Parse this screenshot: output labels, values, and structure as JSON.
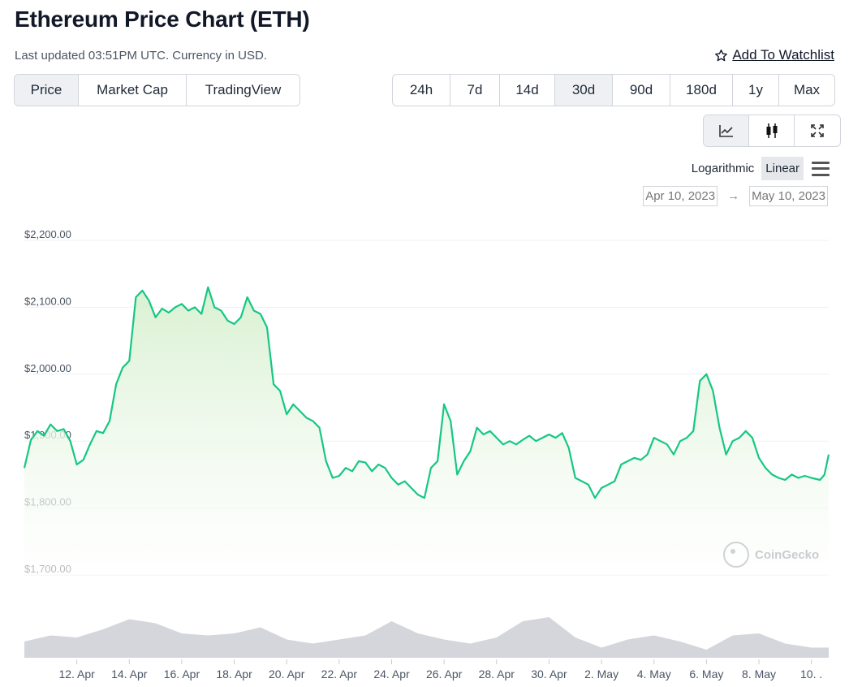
{
  "header": {
    "title": "Ethereum Price Chart (ETH)",
    "updated": "Last updated 03:51PM UTC. Currency in USD.",
    "watchlist_label": "Add To Watchlist",
    "watchlist_icon": "star-outline-icon"
  },
  "view_tabs": [
    "Price",
    "Market Cap",
    "TradingView"
  ],
  "view_active": "Price",
  "range_tabs": [
    "24h",
    "7d",
    "14d",
    "30d",
    "90d",
    "180d",
    "1y",
    "Max"
  ],
  "range_active": "30d",
  "chart_type_icons": [
    "line-chart-icon",
    "candlestick-icon",
    "fullscreen-icon"
  ],
  "chart_type_active": "line-chart-icon",
  "scale": {
    "logarithmic": "Logarithmic",
    "linear": "Linear",
    "active": "Linear",
    "menu_icon": "hamburger-menu-icon"
  },
  "date_range": {
    "from": "Apr 10, 2023",
    "arrow": "→",
    "to": "May 10, 2023"
  },
  "watermark": "CoinGecko",
  "colors": {
    "line": "#16c784",
    "area_top": "#dff3d8",
    "volume": "#d4d6dc",
    "grid": "#eef0f3"
  },
  "chart_data": {
    "type": "area",
    "title": "",
    "xlabel": "",
    "ylabel": "",
    "ylim": [
      1700,
      2200
    ],
    "yticks": [
      1700,
      1800,
      1900,
      2000,
      2100,
      2200
    ],
    "ytick_labels": [
      "$1,700.00",
      "$1,800.00",
      "$1,900.00",
      "$2,000.00",
      "$2,100.00",
      "$2,200.00"
    ],
    "xtick_labels": [
      "12. Apr",
      "14. Apr",
      "16. Apr",
      "18. Apr",
      "20. Apr",
      "22. Apr",
      "24. Apr",
      "26. Apr",
      "28. Apr",
      "30. Apr",
      "2. May",
      "4. May",
      "6. May",
      "8. May",
      "10. ."
    ],
    "xlim": [
      "2023-04-10",
      "2023-05-10 15:51"
    ],
    "price_series": [
      [
        "2023-04-10 00:00",
        1860
      ],
      [
        "2023-04-10 06:00",
        1902
      ],
      [
        "2023-04-10 12:00",
        1915
      ],
      [
        "2023-04-10 18:00",
        1908
      ],
      [
        "2023-04-11 00:00",
        1925
      ],
      [
        "2023-04-11 06:00",
        1915
      ],
      [
        "2023-04-11 12:00",
        1918
      ],
      [
        "2023-04-11 18:00",
        1900
      ],
      [
        "2023-04-12 00:00",
        1865
      ],
      [
        "2023-04-12 06:00",
        1872
      ],
      [
        "2023-04-12 12:00",
        1895
      ],
      [
        "2023-04-12 18:00",
        1915
      ],
      [
        "2023-04-13 00:00",
        1912
      ],
      [
        "2023-04-13 06:00",
        1930
      ],
      [
        "2023-04-13 12:00",
        1985
      ],
      [
        "2023-04-13 18:00",
        2010
      ],
      [
        "2023-04-14 00:00",
        2020
      ],
      [
        "2023-04-14 06:00",
        2115
      ],
      [
        "2023-04-14 12:00",
        2125
      ],
      [
        "2023-04-14 18:00",
        2110
      ],
      [
        "2023-04-15 00:00",
        2085
      ],
      [
        "2023-04-15 06:00",
        2098
      ],
      [
        "2023-04-15 12:00",
        2092
      ],
      [
        "2023-04-15 18:00",
        2100
      ],
      [
        "2023-04-16 00:00",
        2105
      ],
      [
        "2023-04-16 06:00",
        2095
      ],
      [
        "2023-04-16 12:00",
        2100
      ],
      [
        "2023-04-16 18:00",
        2090
      ],
      [
        "2023-04-17 00:00",
        2130
      ],
      [
        "2023-04-17 06:00",
        2100
      ],
      [
        "2023-04-17 12:00",
        2095
      ],
      [
        "2023-04-17 18:00",
        2080
      ],
      [
        "2023-04-18 00:00",
        2075
      ],
      [
        "2023-04-18 06:00",
        2085
      ],
      [
        "2023-04-18 12:00",
        2115
      ],
      [
        "2023-04-18 18:00",
        2095
      ],
      [
        "2023-04-19 00:00",
        2090
      ],
      [
        "2023-04-19 06:00",
        2070
      ],
      [
        "2023-04-19 12:00",
        1985
      ],
      [
        "2023-04-19 18:00",
        1975
      ],
      [
        "2023-04-20 00:00",
        1940
      ],
      [
        "2023-04-20 06:00",
        1955
      ],
      [
        "2023-04-20 12:00",
        1945
      ],
      [
        "2023-04-20 18:00",
        1935
      ],
      [
        "2023-04-21 00:00",
        1930
      ],
      [
        "2023-04-21 06:00",
        1920
      ],
      [
        "2023-04-21 12:00",
        1870
      ],
      [
        "2023-04-21 18:00",
        1845
      ],
      [
        "2023-04-22 00:00",
        1848
      ],
      [
        "2023-04-22 06:00",
        1860
      ],
      [
        "2023-04-22 12:00",
        1855
      ],
      [
        "2023-04-22 18:00",
        1870
      ],
      [
        "2023-04-23 00:00",
        1868
      ],
      [
        "2023-04-23 06:00",
        1855
      ],
      [
        "2023-04-23 12:00",
        1865
      ],
      [
        "2023-04-23 18:00",
        1860
      ],
      [
        "2023-04-24 00:00",
        1845
      ],
      [
        "2023-04-24 06:00",
        1835
      ],
      [
        "2023-04-24 12:00",
        1840
      ],
      [
        "2023-04-24 18:00",
        1830
      ],
      [
        "2023-04-25 00:00",
        1820
      ],
      [
        "2023-04-25 06:00",
        1815
      ],
      [
        "2023-04-25 12:00",
        1860
      ],
      [
        "2023-04-25 18:00",
        1870
      ],
      [
        "2023-04-26 00:00",
        1955
      ],
      [
        "2023-04-26 06:00",
        1930
      ],
      [
        "2023-04-26 12:00",
        1850
      ],
      [
        "2023-04-26 18:00",
        1870
      ],
      [
        "2023-04-27 00:00",
        1885
      ],
      [
        "2023-04-27 06:00",
        1920
      ],
      [
        "2023-04-27 12:00",
        1910
      ],
      [
        "2023-04-27 18:00",
        1915
      ],
      [
        "2023-04-28 00:00",
        1905
      ],
      [
        "2023-04-28 06:00",
        1895
      ],
      [
        "2023-04-28 12:00",
        1900
      ],
      [
        "2023-04-28 18:00",
        1895
      ],
      [
        "2023-04-29 00:00",
        1902
      ],
      [
        "2023-04-29 06:00",
        1908
      ],
      [
        "2023-04-29 12:00",
        1900
      ],
      [
        "2023-04-29 18:00",
        1905
      ],
      [
        "2023-04-30 00:00",
        1910
      ],
      [
        "2023-04-30 06:00",
        1905
      ],
      [
        "2023-04-30 12:00",
        1912
      ],
      [
        "2023-04-30 18:00",
        1890
      ],
      [
        "2023-05-01 00:00",
        1845
      ],
      [
        "2023-05-01 06:00",
        1840
      ],
      [
        "2023-05-01 12:00",
        1835
      ],
      [
        "2023-05-01 18:00",
        1815
      ],
      [
        "2023-05-02 00:00",
        1830
      ],
      [
        "2023-05-02 06:00",
        1835
      ],
      [
        "2023-05-02 12:00",
        1840
      ],
      [
        "2023-05-02 18:00",
        1865
      ],
      [
        "2023-05-03 00:00",
        1870
      ],
      [
        "2023-05-03 06:00",
        1875
      ],
      [
        "2023-05-03 12:00",
        1872
      ],
      [
        "2023-05-03 18:00",
        1880
      ],
      [
        "2023-05-04 00:00",
        1905
      ],
      [
        "2023-05-04 06:00",
        1900
      ],
      [
        "2023-05-04 12:00",
        1895
      ],
      [
        "2023-05-04 18:00",
        1880
      ],
      [
        "2023-05-05 00:00",
        1900
      ],
      [
        "2023-05-05 06:00",
        1905
      ],
      [
        "2023-05-05 12:00",
        1915
      ],
      [
        "2023-05-05 18:00",
        1990
      ],
      [
        "2023-05-06 00:00",
        2000
      ],
      [
        "2023-05-06 06:00",
        1975
      ],
      [
        "2023-05-06 12:00",
        1920
      ],
      [
        "2023-05-06 18:00",
        1880
      ],
      [
        "2023-05-07 00:00",
        1900
      ],
      [
        "2023-05-07 06:00",
        1905
      ],
      [
        "2023-05-07 12:00",
        1915
      ],
      [
        "2023-05-07 18:00",
        1905
      ],
      [
        "2023-05-08 00:00",
        1875
      ],
      [
        "2023-05-08 06:00",
        1860
      ],
      [
        "2023-05-08 12:00",
        1850
      ],
      [
        "2023-05-08 18:00",
        1845
      ],
      [
        "2023-05-09 00:00",
        1842
      ],
      [
        "2023-05-09 06:00",
        1850
      ],
      [
        "2023-05-09 12:00",
        1845
      ],
      [
        "2023-05-09 18:00",
        1848
      ],
      [
        "2023-05-10 00:00",
        1845
      ],
      [
        "2023-05-10 08:00",
        1842
      ],
      [
        "2023-05-10 12:00",
        1850
      ],
      [
        "2023-05-10 15:51",
        1880
      ]
    ],
    "volume_series": [
      [
        "2023-04-10",
        0.4
      ],
      [
        "2023-04-11",
        0.55
      ],
      [
        "2023-04-12",
        0.5
      ],
      [
        "2023-04-13",
        0.7
      ],
      [
        "2023-04-14",
        0.95
      ],
      [
        "2023-04-15",
        0.85
      ],
      [
        "2023-04-16",
        0.6
      ],
      [
        "2023-04-17",
        0.55
      ],
      [
        "2023-04-18",
        0.6
      ],
      [
        "2023-04-19",
        0.75
      ],
      [
        "2023-04-20",
        0.45
      ],
      [
        "2023-04-21",
        0.35
      ],
      [
        "2023-04-22",
        0.45
      ],
      [
        "2023-04-23",
        0.55
      ],
      [
        "2023-04-24",
        0.9
      ],
      [
        "2023-04-25",
        0.6
      ],
      [
        "2023-04-26",
        0.45
      ],
      [
        "2023-04-27",
        0.35
      ],
      [
        "2023-04-28",
        0.5
      ],
      [
        "2023-04-29",
        0.9
      ],
      [
        "2023-04-30",
        1.0
      ],
      [
        "2023-05-01",
        0.5
      ],
      [
        "2023-05-02",
        0.25
      ],
      [
        "2023-05-03",
        0.45
      ],
      [
        "2023-05-04",
        0.55
      ],
      [
        "2023-05-05",
        0.4
      ],
      [
        "2023-05-06",
        0.2
      ],
      [
        "2023-05-07",
        0.55
      ],
      [
        "2023-05-08",
        0.6
      ],
      [
        "2023-05-09",
        0.35
      ],
      [
        "2023-05-10",
        0.25
      ]
    ]
  }
}
